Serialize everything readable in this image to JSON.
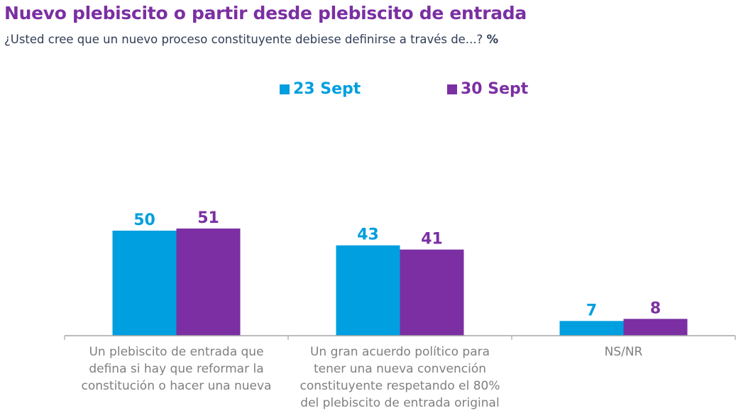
{
  "header": {
    "title": "Nuevo plebiscito o partir desde plebiscito de entrada",
    "subtitle": "¿Usted cree que un nuevo proceso constituyente debiese definirse a través de...?",
    "unit_marker": "%"
  },
  "colors": {
    "title": "#7b2fa2",
    "subtitle": "#2f3d56",
    "series_23_sept": "#009fdf",
    "series_30_sept": "#7b2fa2",
    "axis": "#a6a6a6",
    "category_label": "#7f7f7f"
  },
  "chart_data": {
    "type": "bar",
    "title": "Nuevo plebiscito o partir desde plebiscito de entrada",
    "subtitle": "¿Usted cree que un nuevo proceso constituyente debiese definirse a través de...? %",
    "xlabel": "",
    "ylabel": "%",
    "ylim": [
      0,
      55
    ],
    "grid": false,
    "legend_position": "top-center",
    "categories": [
      "Un plebiscito de entrada que defina si hay que reformar la constitución o hacer una nueva",
      "Un gran acuerdo político para tener una nueva convención constituyente respetando el 80% del plebiscito de entrada original",
      "NS/NR"
    ],
    "category_lines": [
      [
        "Un plebiscito de entrada que",
        "defina si hay que reformar la",
        "constitución o hacer una nueva"
      ],
      [
        "Un gran acuerdo político para",
        "tener una nueva convención",
        "constituyente respetando el 80%",
        "del plebiscito de entrada original"
      ],
      [
        "NS/NR"
      ]
    ],
    "series": [
      {
        "name": "23 Sept",
        "color": "#009fdf",
        "values": [
          50,
          43,
          7
        ]
      },
      {
        "name": "30 Sept",
        "color": "#7b2fa2",
        "values": [
          51,
          41,
          8
        ]
      }
    ]
  }
}
